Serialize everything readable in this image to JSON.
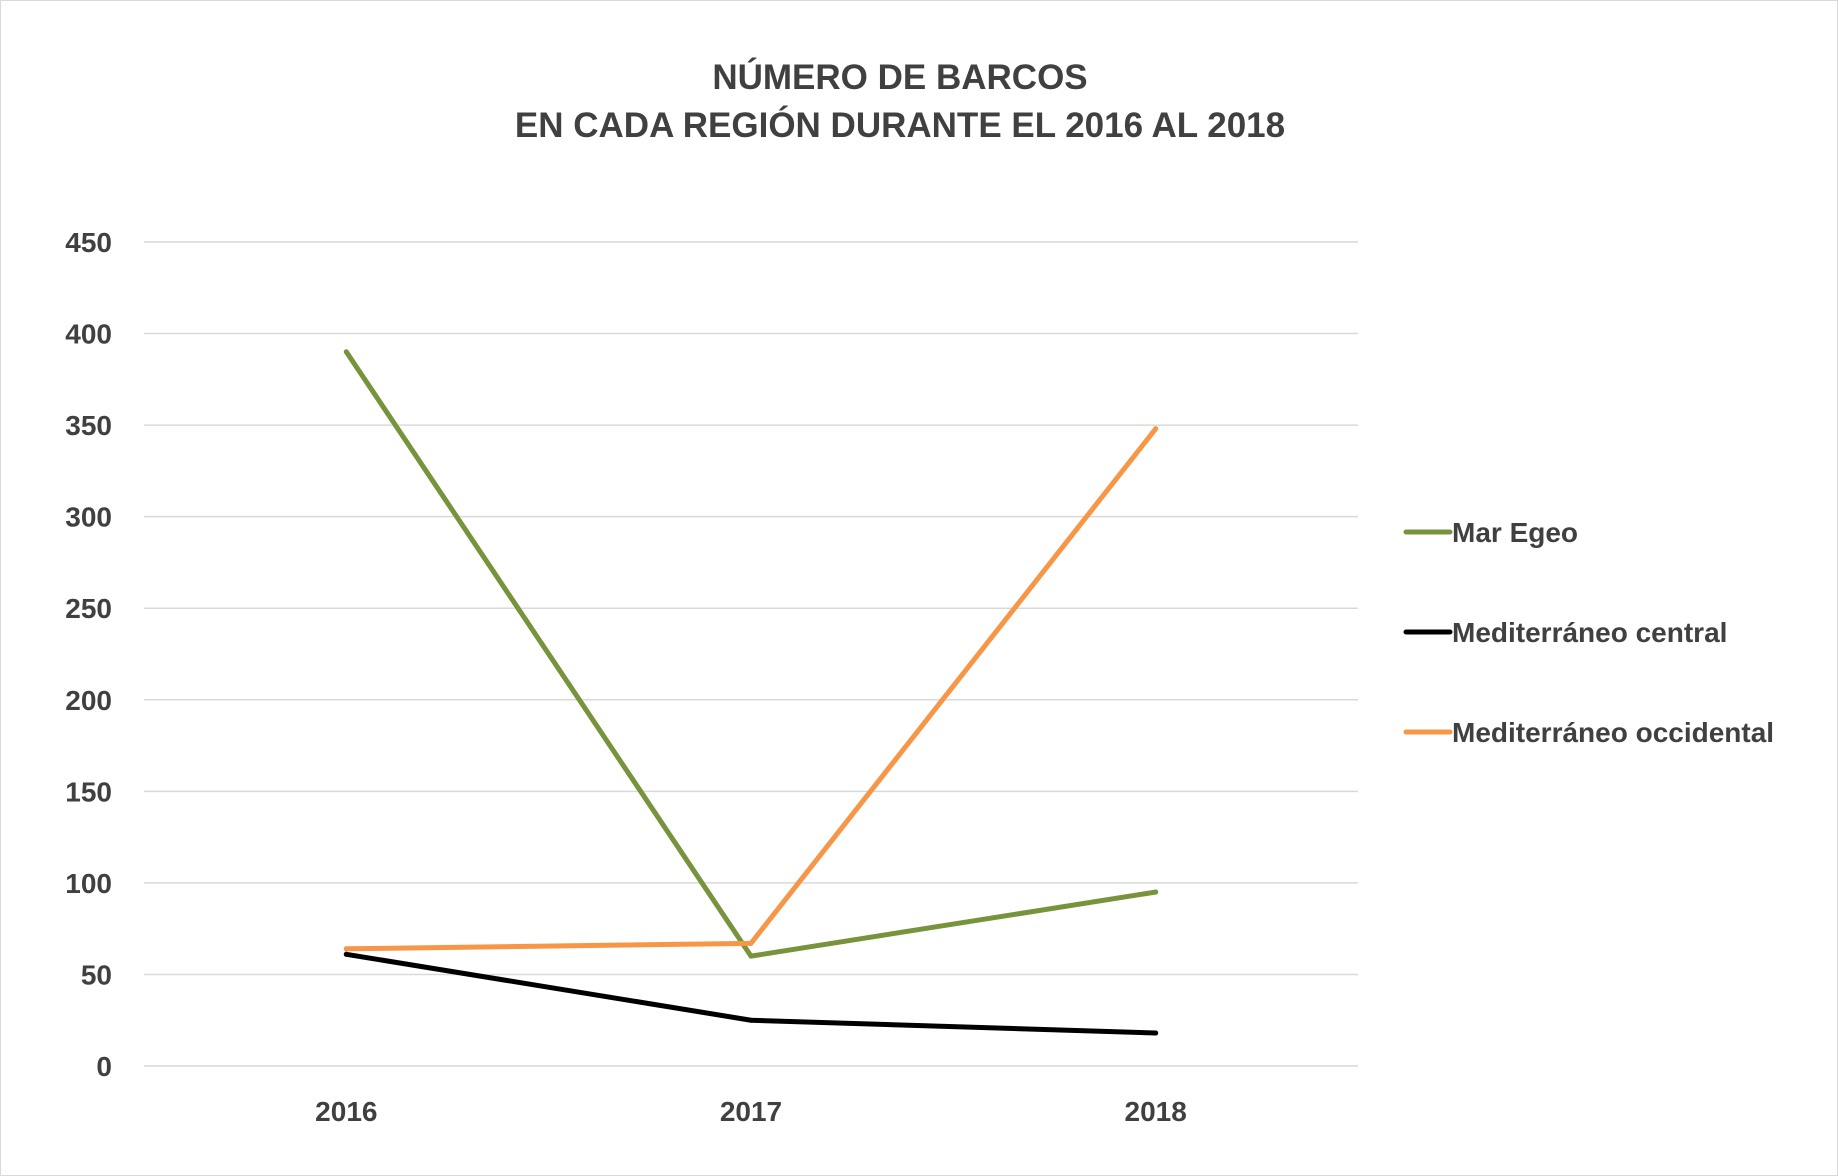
{
  "chart_data": {
    "type": "line",
    "title": [
      "NÚMERO DE BARCOS",
      "EN CADA REGIÓN DURANTE EL 2016 AL 2018"
    ],
    "xlabel": "",
    "ylabel": "",
    "categories": [
      "2016",
      "2017",
      "2018"
    ],
    "ylim": [
      0,
      450
    ],
    "yticks": [
      0,
      50,
      100,
      150,
      200,
      250,
      300,
      350,
      400,
      450
    ],
    "grid": "horizontal",
    "legend_position": "right",
    "series": [
      {
        "name": "Mar Egeo",
        "values": [
          390,
          60,
          95
        ],
        "color": "#77933C"
      },
      {
        "name": "Mediterráneo central",
        "values": [
          61,
          25,
          18
        ],
        "color": "#000000"
      },
      {
        "name": "Mediterráneo occidental",
        "values": [
          64,
          67,
          348
        ],
        "color": "#F79646"
      }
    ]
  }
}
